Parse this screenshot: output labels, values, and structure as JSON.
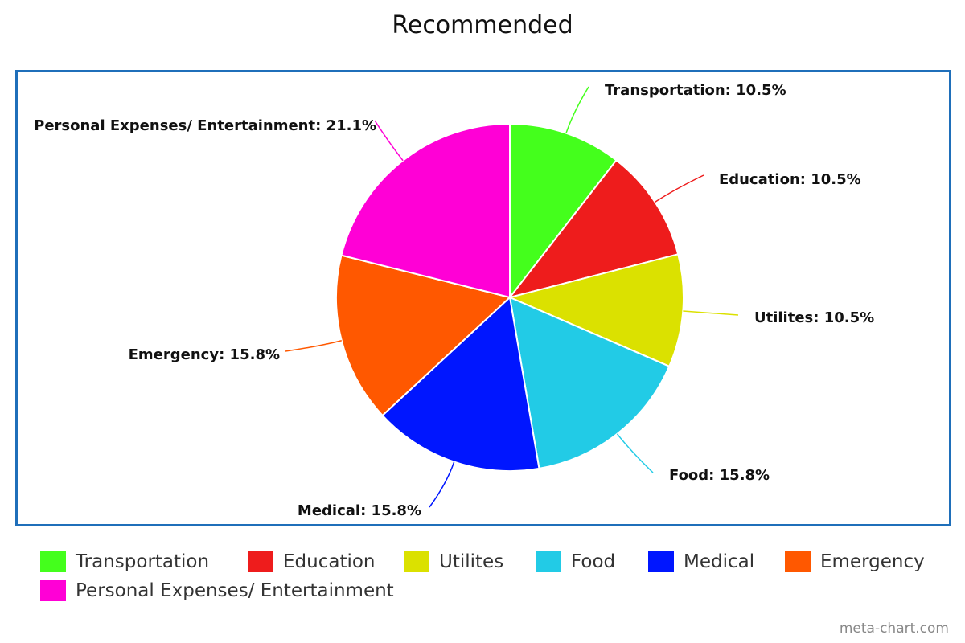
{
  "chart_data": {
    "type": "pie",
    "title": "Recommended",
    "slices": [
      {
        "name": "Transportation",
        "value": 10.5,
        "label": "Transportation: 10.5%",
        "color": "#44ff1c"
      },
      {
        "name": "Education",
        "value": 10.5,
        "label": "Education: 10.5%",
        "color": "#ee1c1c"
      },
      {
        "name": "Utilites",
        "value": 10.5,
        "label": "Utilites: 10.5%",
        "color": "#dbe100"
      },
      {
        "name": "Food",
        "value": 15.8,
        "label": "Food: 15.8%",
        "color": "#22cbe6"
      },
      {
        "name": "Medical",
        "value": 15.8,
        "label": "Medical: 15.8%",
        "color": "#0016ff"
      },
      {
        "name": "Emergency",
        "value": 15.8,
        "label": "Emergency: 15.8%",
        "color": "#ff5800"
      },
      {
        "name": "Personal Expenses/ Entertainment",
        "value": 21.1,
        "label": "Personal Expenses/ Entertainment: 21.1%",
        "color": "#ff00d6"
      }
    ],
    "legend_placement": "bottom"
  },
  "credit": "meta-chart.com"
}
